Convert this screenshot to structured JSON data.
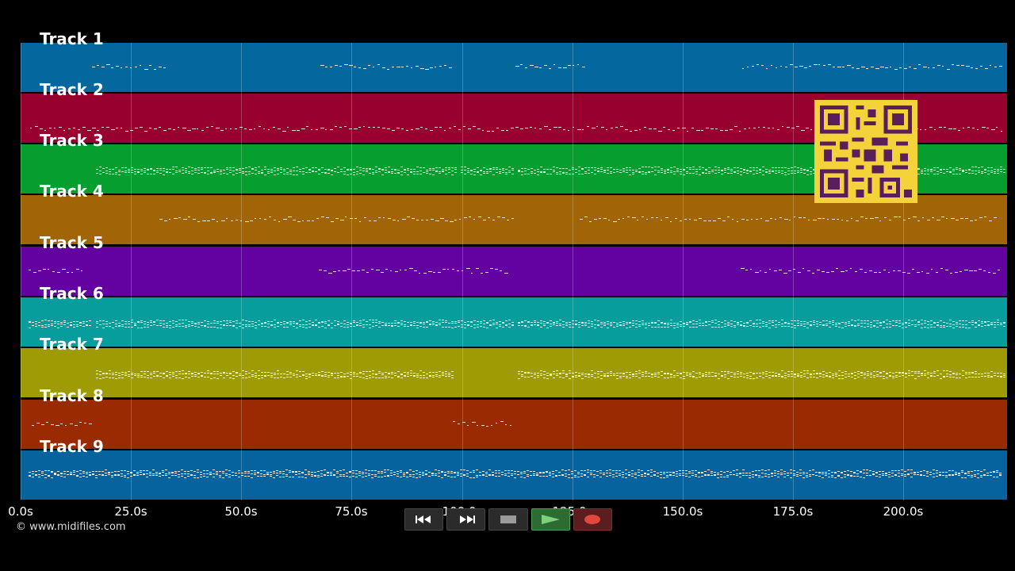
{
  "tracks": [
    {
      "label": "Track 1",
      "color": "#04689f"
    },
    {
      "label": "Track 2",
      "color": "#97002f"
    },
    {
      "label": "Track 3",
      "color": "#069e2e"
    },
    {
      "label": "Track 4",
      "color": "#a16407"
    },
    {
      "label": "Track 5",
      "color": "#6402a1"
    },
    {
      "label": "Track 6",
      "color": "#069d9c"
    },
    {
      "label": "Track 7",
      "color": "#9e9b04"
    },
    {
      "label": "Track 8",
      "color": "#992a02"
    },
    {
      "label": "Track 9",
      "color": "#06639e"
    }
  ],
  "axis": {
    "ticks": [
      "0.0s",
      "25.0s",
      "50.0s",
      "75.0s",
      "100.0s",
      "125.0s",
      "150.0s",
      "175.0s",
      "200.0s"
    ]
  },
  "credit": "© www.midifiles.com",
  "transport": {
    "rewind_icon": "rewind-icon",
    "forward_icon": "fast-forward-icon",
    "stop_icon": "stop-icon",
    "play_icon": "play-icon",
    "record_icon": "record-icon"
  },
  "qr_icon": "qr-code-icon"
}
